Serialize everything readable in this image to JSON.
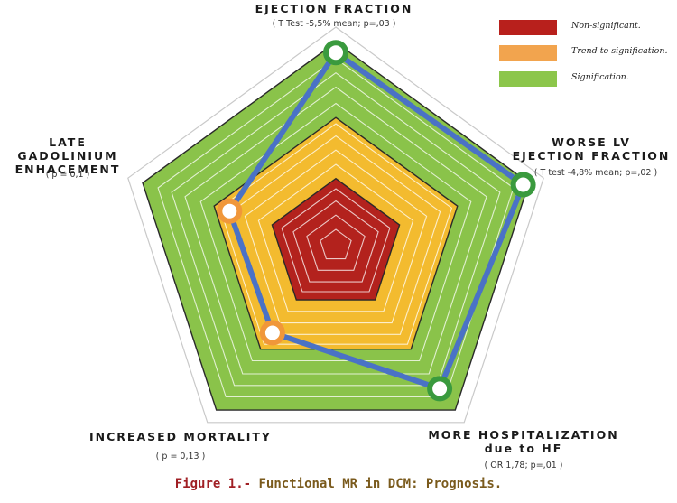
{
  "chart_data": {
    "type": "radar",
    "axes": [
      {
        "name": "EJECTION FRACTION",
        "stat": "( T Test -5,5% mean; p=,03 )",
        "level": "Signification."
      },
      {
        "name": "WORSE LV EJECTION FRACTION",
        "stat": "( T test -4,8% mean; p=,02 )",
        "level": "Signification."
      },
      {
        "name": "MORE HOSPITALIZATION due to HF",
        "stat": "( OR 1,78; p=,01 )",
        "level": "Signification."
      },
      {
        "name": "INCREASED MORTALITY",
        "stat": "( p = 0,13 )",
        "level": "Trend to signification."
      },
      {
        "name": "LATE GADOLINIUM ENHACEMENT",
        "stat": "( p = 0,1 )",
        "level": "Trend to signification."
      }
    ],
    "values": [
      0.95,
      0.97,
      0.87,
      0.53,
      0.55
    ],
    "bands": [
      {
        "label": "Non-significant.",
        "color": "#b8201c",
        "outer": 0.33
      },
      {
        "label": "Trend to signification.",
        "color": "#f2a44e",
        "outer": 0.63
      },
      {
        "label": "Signification.",
        "color": "#8cc64b",
        "outer": 1.0
      }
    ],
    "band_fill_colors": [
      "#b3221d",
      "#f3bb2f",
      "#8ac34a"
    ],
    "marker_colors": {
      "Signification.": "#3a9a3e",
      "Trend to signification.": "#f0973a"
    },
    "line_color": "#4a72c6"
  },
  "axis_labels": [
    {
      "lines": [
        "EJECTION FRACTION"
      ],
      "stat": "( T Test -5,5% mean; p=,03 )"
    },
    {
      "lines": [
        "WORSE LV",
        "EJECTION FRACTION"
      ],
      "stat": "( T test -4,8% mean; p=,02 )"
    },
    {
      "lines": [
        "MORE HOSPITALIZATION",
        "due to HF"
      ],
      "stat": "( OR 1,78; p=,01 )"
    },
    {
      "lines": [
        "INCREASED MORTALITY"
      ],
      "stat": "( p = 0,13 )"
    },
    {
      "lines": [
        "LATE GADOLINIUM",
        "ENHACEMENT"
      ],
      "stat": "( p = 0,1 )"
    }
  ],
  "legend": [
    {
      "label": "Non-significant.",
      "color": "#b8201c"
    },
    {
      "label": "Trend to signification.",
      "color": "#f2a44e"
    },
    {
      "label": "Signification.",
      "color": "#8cc64b"
    }
  ],
  "caption": {
    "prefix": "Figure 1.-",
    "text": " Functional MR in DCM: Prognosis."
  }
}
